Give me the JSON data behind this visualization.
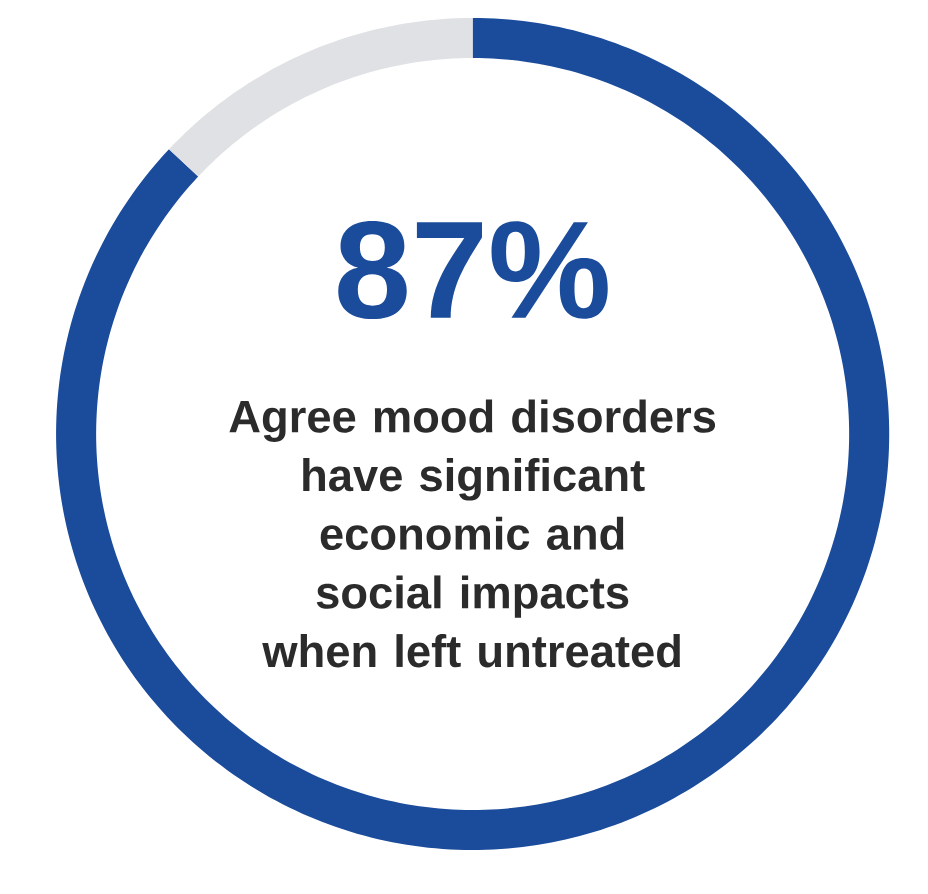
{
  "chart_data": {
    "type": "donut",
    "categories": [
      "Agree mood disorders have significant economic and social impacts when left untreated",
      null
    ],
    "values": [
      87,
      13
    ],
    "colors": [
      "#1b4c9c",
      "#dfe1e4"
    ],
    "value_labels": [
      "87%",
      null
    ]
  }
}
